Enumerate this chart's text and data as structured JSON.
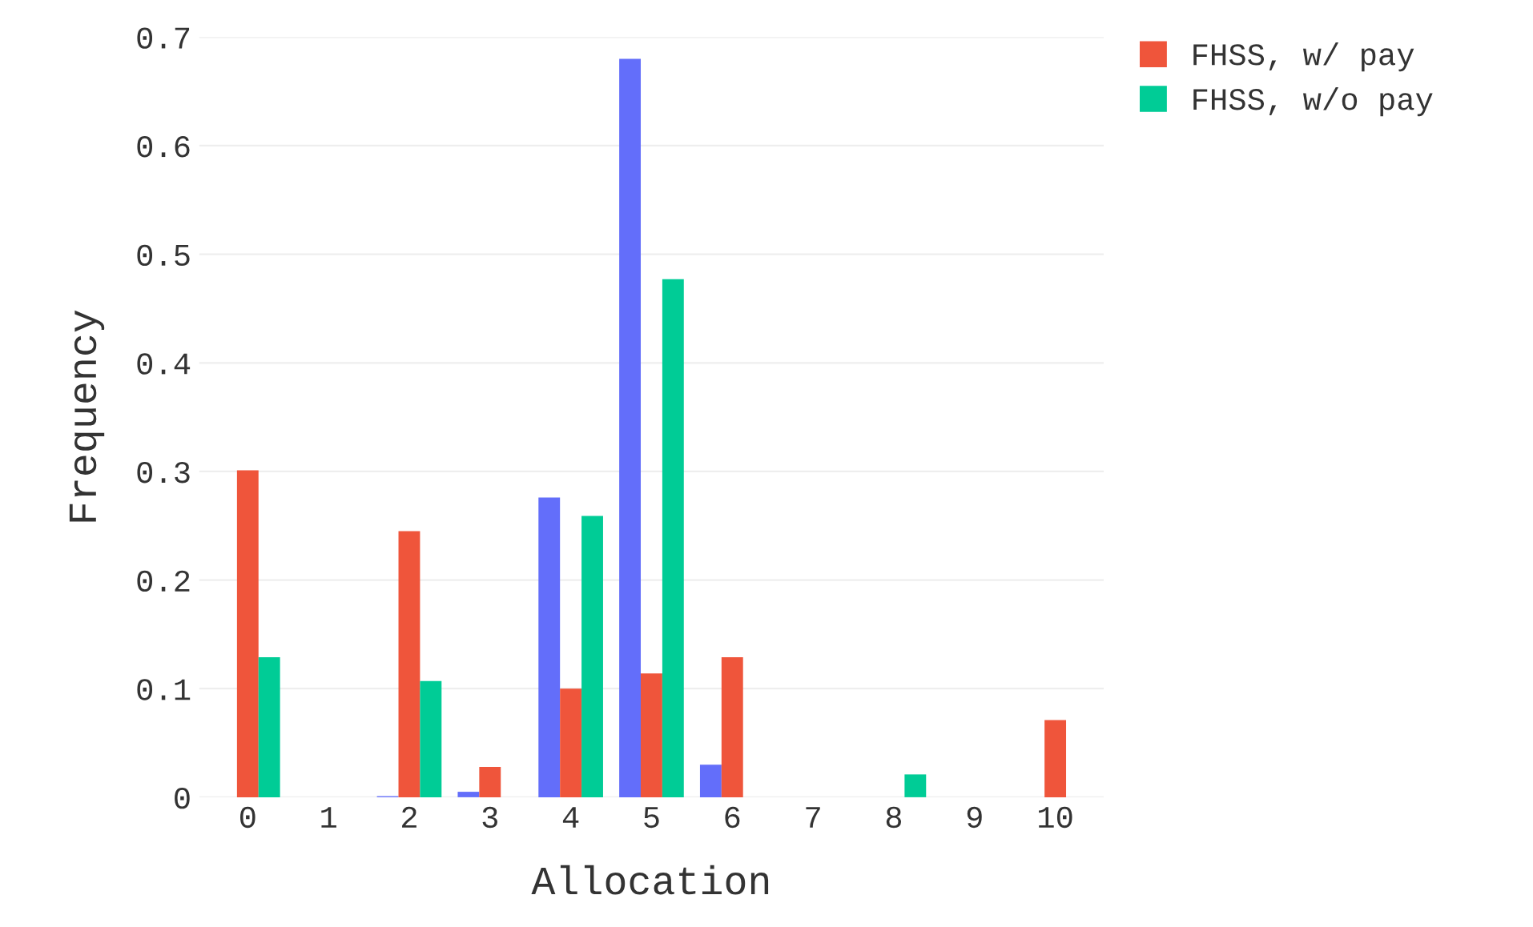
{
  "chart_data": {
    "type": "bar",
    "xlabel": "Allocation",
    "ylabel": "Frequency",
    "categories": [
      "0",
      "1",
      "2",
      "3",
      "4",
      "5",
      "6",
      "7",
      "8",
      "9",
      "10"
    ],
    "series": [
      {
        "color": "#636efa",
        "values": [
          0,
          0,
          0.001,
          0.005,
          0.276,
          0.68,
          0.03,
          0,
          0,
          0,
          0
        ]
      },
      {
        "name": "FHSS, w/ pay",
        "color": "#ef553b",
        "values": [
          0.301,
          0,
          0.245,
          0.028,
          0.1,
          0.114,
          0.129,
          0,
          0,
          0,
          0.071
        ]
      },
      {
        "name": "FHSS, w/o pay",
        "color": "#00cc96",
        "values": [
          0.129,
          0,
          0.107,
          0,
          0.259,
          0.477,
          0,
          0,
          0.021,
          0,
          0
        ]
      }
    ],
    "ylim": [
      0,
      0.7
    ],
    "yticks": [
      0,
      0.1,
      0.2,
      0.3,
      0.4,
      0.5,
      0.6,
      0.7
    ],
    "grid": "y",
    "legend": "top right"
  }
}
